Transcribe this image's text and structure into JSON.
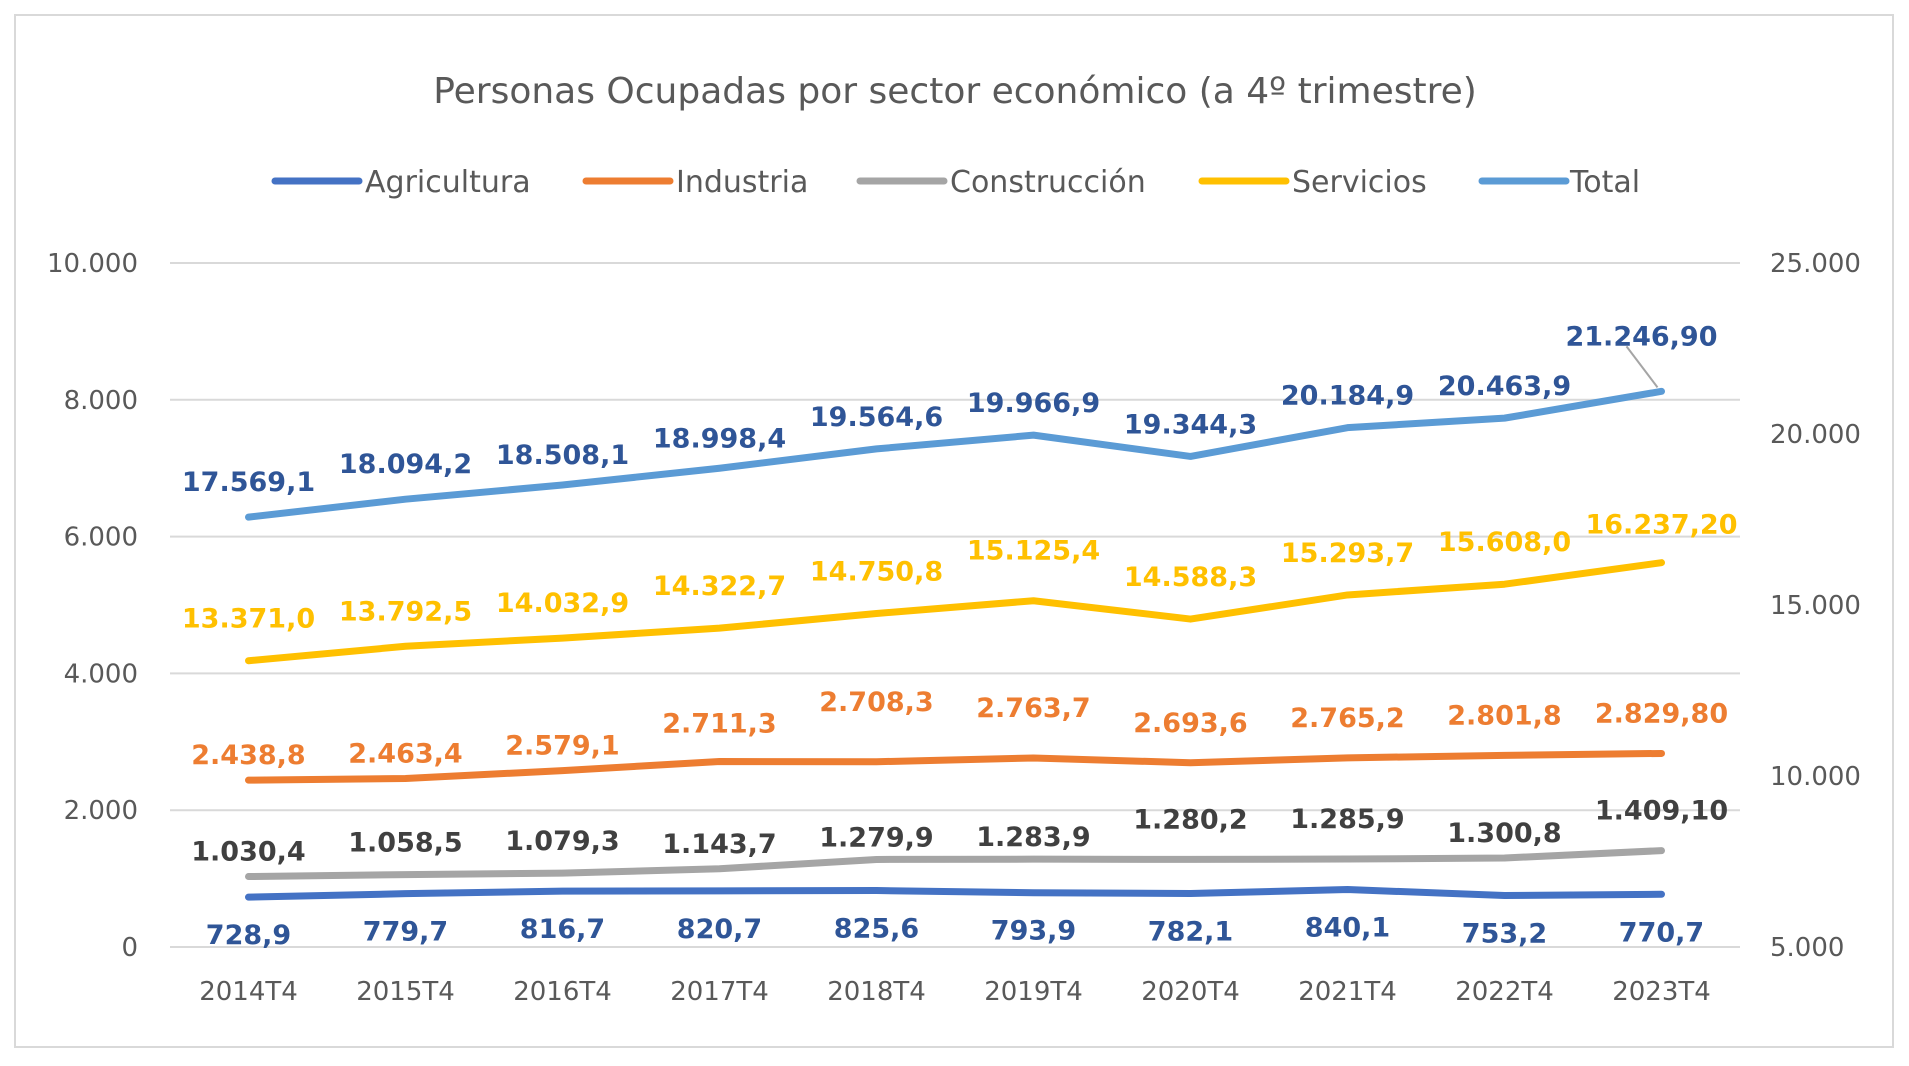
{
  "chart_data": {
    "type": "line",
    "title": "Personas Ocupadas por sector económico (a 4º trimestre)",
    "categories": [
      "2014T4",
      "2015T4",
      "2016T4",
      "2017T4",
      "2018T4",
      "2019T4",
      "2020T4",
      "2021T4",
      "2022T4",
      "2023T4"
    ],
    "y_left": {
      "min": 0,
      "max": 10000,
      "ticks": [
        "0",
        "2.000",
        "4.000",
        "6.000",
        "8.000",
        "10.000"
      ]
    },
    "y_right": {
      "min": 5000,
      "max": 25000,
      "ticks": [
        "5.000",
        "10.000",
        "15.000",
        "20.000",
        "25.000"
      ]
    },
    "grid": true,
    "legend_position": "top",
    "series": [
      {
        "name": "Agricultura",
        "color": "#4472c4",
        "label_color": "#2f5597",
        "axis": "left",
        "values": [
          728.9,
          779.7,
          816.7,
          820.7,
          825.6,
          793.9,
          782.1,
          840.1,
          753.2,
          770.7
        ],
        "labels": [
          "728,9",
          "779,7",
          "816,7",
          "820,7",
          "825,6",
          "793,9",
          "782,1",
          "840,1",
          "753,2",
          "770,7"
        ]
      },
      {
        "name": "Industria",
        "color": "#ed7d31",
        "label_color": "#ed7d31",
        "axis": "left",
        "values": [
          2438.8,
          2463.4,
          2579.1,
          2711.3,
          2708.3,
          2763.7,
          2693.6,
          2765.2,
          2801.8,
          2829.8
        ],
        "labels": [
          "2.438,8",
          "2.463,4",
          "2.579,1",
          "2.711,3",
          "2.708,3",
          "2.763,7",
          "2.693,6",
          "2.765,2",
          "2.801,8",
          "2.829,80"
        ]
      },
      {
        "name": "Construcción",
        "color": "#a5a5a5",
        "label_color": "#404040",
        "axis": "left",
        "values": [
          1030.4,
          1058.5,
          1079.3,
          1143.7,
          1279.9,
          1283.9,
          1280.2,
          1285.9,
          1300.8,
          1409.1
        ],
        "labels": [
          "1.030,4",
          "1.058,5",
          "1.079,3",
          "1.143,7",
          "1.279,9",
          "1.283,9",
          "1.280,2",
          "1.285,9",
          "1.300,8",
          "1.409,10"
        ]
      },
      {
        "name": "Servicios",
        "color": "#ffc000",
        "label_color": "#ffc000",
        "axis": "right",
        "values": [
          13371.0,
          13792.5,
          14032.9,
          14322.7,
          14750.8,
          15125.4,
          14588.3,
          15293.7,
          15608.0,
          16237.2
        ],
        "labels": [
          "13.371,0",
          "13.792,5",
          "14.032,9",
          "14.322,7",
          "14.750,8",
          "15.125,4",
          "14.588,3",
          "15.293,7",
          "15.608,0",
          "16.237,20"
        ]
      },
      {
        "name": "Total",
        "color": "#5b9bd5",
        "label_color": "#2f5597",
        "axis": "right",
        "values": [
          17569.1,
          18094.2,
          18508.1,
          18998.4,
          19564.6,
          19966.9,
          19344.3,
          20184.9,
          20463.9,
          21246.9
        ],
        "labels": [
          "17.569,1",
          "18.094,2",
          "18.508,1",
          "18.998,4",
          "19.564,6",
          "19.966,9",
          "19.344,3",
          "20.184,9",
          "20.463,9",
          "21.246,90"
        ]
      }
    ]
  }
}
